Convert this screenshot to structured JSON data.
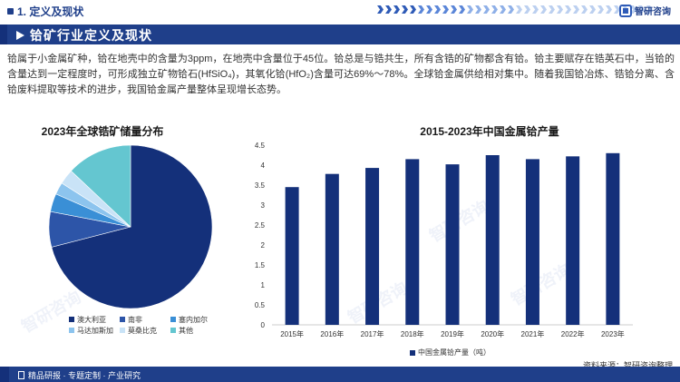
{
  "header": {
    "section_title": "1. 定义及现状",
    "brand": "智研咨询"
  },
  "banner": {
    "title": "铪矿行业定义及现状"
  },
  "intro": {
    "text": "铪属于小金属矿种，铪在地壳中的含量为3ppm，在地壳中含量位于45位。铪总是与锆共生，所有含锆的矿物都含有铪。铪主要赋存在锆英石中，当铪的含量达到一定程度时，可形成独立矿物铪石(HfSiO₄)，其氧化铪(HfO₂)含量可达69%～78%。全球铪金属供给相对集中。随着我国铪冶炼、锆铪分离、含铪废料提取等技术的进步，我国铪金属产量整体呈现增长态势。"
  },
  "watermark": "智研咨询",
  "colors": {
    "navy": "#1f3f8a",
    "bar": "#14307a"
  },
  "chart_data": [
    {
      "type": "pie",
      "title": "2023年全球锆矿储量分布",
      "labels": [
        "澳大利亚",
        "南非",
        "塞内加尔",
        "马达加斯加",
        "莫桑比克",
        "其他"
      ],
      "values": [
        71,
        7,
        3.6,
        2.4,
        3,
        13
      ],
      "colors": [
        "#14307a",
        "#2d55a8",
        "#3a8fd6",
        "#8cc4ee",
        "#c9e3f7",
        "#64c6d0"
      ]
    },
    {
      "type": "bar",
      "title": "2015-2023年中国金属铪产量",
      "categories": [
        "2015年",
        "2016年",
        "2017年",
        "2018年",
        "2019年",
        "2020年",
        "2021年",
        "2022年",
        "2023年"
      ],
      "series": [
        {
          "name": "中国金属铪产量（吨）",
          "values": [
            3.45,
            3.78,
            3.93,
            4.15,
            4.02,
            4.25,
            4.15,
            4.22,
            4.3
          ]
        }
      ],
      "ylim": [
        0,
        4.5
      ],
      "yticks": [
        "0",
        "0.5",
        "1",
        "1.5",
        "2",
        "2.5",
        "3",
        "3.5",
        "4",
        "4.5"
      ],
      "grid": false
    }
  ],
  "source": "资料来源：智研咨询整理",
  "footer": {
    "text": "精品研报 · 专题定制 · 产业研究"
  }
}
